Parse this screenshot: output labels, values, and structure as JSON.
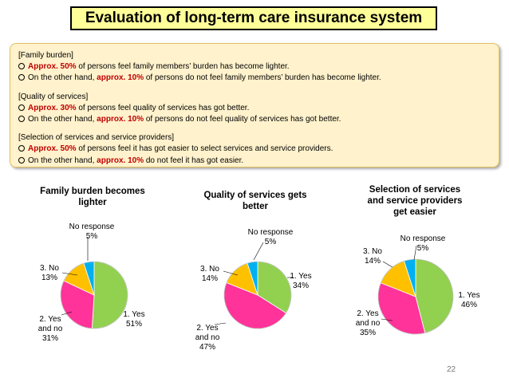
{
  "title": "Evaluation of long-term care insurance system",
  "summary": [
    {
      "heading": "[Family burden]",
      "lines": [
        {
          "pre": "",
          "em": "Approx. 50%",
          "post": " of persons feel family members’ burden has become lighter."
        },
        {
          "pre": "On the other hand, ",
          "em": "approx. 10%",
          "post": " of persons do not feel family members’ burden has become lighter."
        }
      ]
    },
    {
      "heading": "[Quality of services]",
      "lines": [
        {
          "pre": "",
          "em": "Approx. 30%",
          "post": " of persons feel quality of services has got better."
        },
        {
          "pre": "On the other hand, ",
          "em": "approx. 10%",
          "post": " of persons do not feel quality of services has got better."
        }
      ]
    },
    {
      "heading": "[Selection of services and service providers]",
      "lines": [
        {
          "pre": "",
          "em": "Approx. 50%",
          "post": " of persons feel it has got easier to select services and service providers."
        },
        {
          "pre": "On the other hand, ",
          "em": "approx. 10%",
          "post": "  do not feel it has got easier."
        }
      ]
    }
  ],
  "chart_data": [
    {
      "type": "pie",
      "title": [
        "Family burden becomes",
        "lighter"
      ],
      "slices": [
        {
          "label": [
            "1. Yes",
            "51%"
          ],
          "value": 51
        },
        {
          "label": [
            "2. Yes",
            "and no",
            "31%"
          ],
          "value": 31
        },
        {
          "label": [
            "3. No",
            "13%"
          ],
          "value": 13
        },
        {
          "label": [
            "No response",
            "5%"
          ],
          "value": 5
        }
      ]
    },
    {
      "type": "pie",
      "title": [
        "Quality of services gets",
        "better"
      ],
      "slices": [
        {
          "label": [
            "1. Yes",
            "34%"
          ],
          "value": 34
        },
        {
          "label": [
            "2. Yes",
            "and no",
            "47%"
          ],
          "value": 47
        },
        {
          "label": [
            "3. No",
            "14%"
          ],
          "value": 14
        },
        {
          "label": [
            "No response",
            "5%"
          ],
          "value": 5
        }
      ]
    },
    {
      "type": "pie",
      "title": [
        "Selection of services",
        "and service providers",
        "get easier"
      ],
      "slices": [
        {
          "label": [
            "1. Yes",
            "46%"
          ],
          "value": 46
        },
        {
          "label": [
            "2. Yes",
            "and no",
            "35%"
          ],
          "value": 35
        },
        {
          "label": [
            "3. No",
            "14%"
          ],
          "value": 14
        },
        {
          "label": [
            "No response",
            "5%"
          ],
          "value": 5
        }
      ]
    }
  ],
  "colors": [
    "#92d050",
    "#ff3399",
    "#ffc000",
    "#00b0f0"
  ],
  "page_number": "22"
}
